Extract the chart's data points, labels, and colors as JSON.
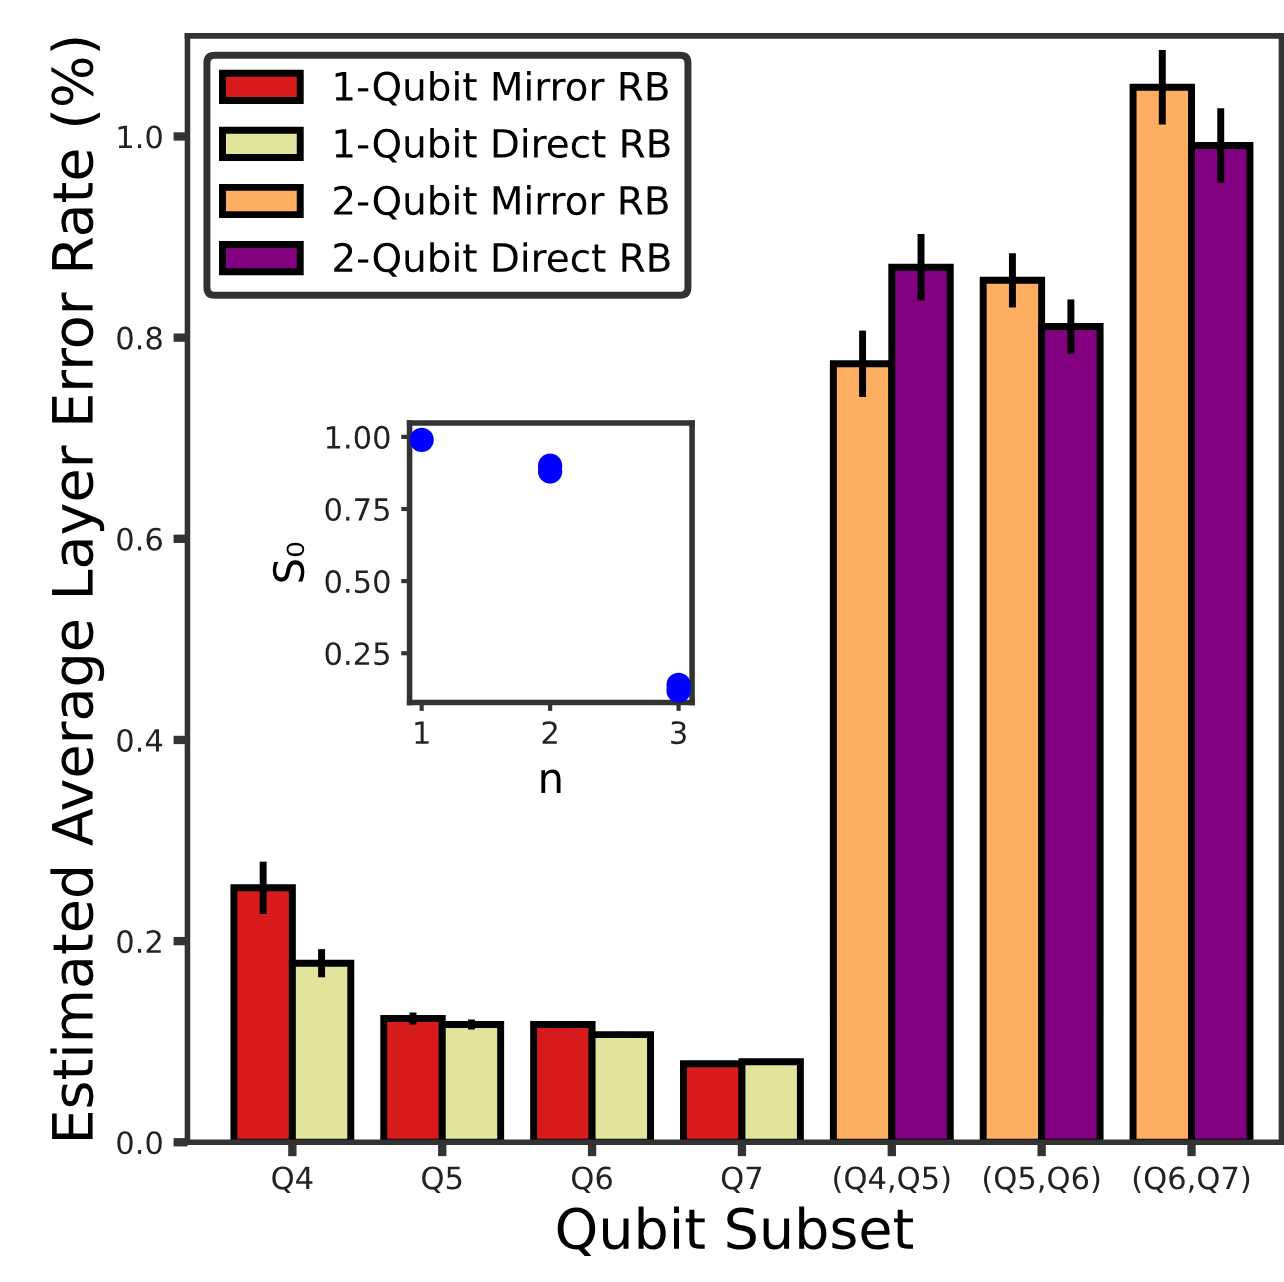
{
  "chart_data": [
    {
      "type": "bar",
      "xlabel": "Qubit Subset",
      "ylabel": "Estimated Average Layer Error Rate (%)",
      "categories": [
        "Q4",
        "Q5",
        "Q6",
        "Q7",
        "(Q4,Q5)",
        "(Q5,Q6)",
        "(Q6,Q7)"
      ],
      "series": [
        {
          "name": "1-Qubit Mirror RB",
          "color": "#d71a1c",
          "values": [
            0.253,
            0.123,
            0.117,
            0.078,
            null,
            null,
            null
          ],
          "errors": [
            0.026,
            0.006,
            0.002,
            null,
            null,
            null,
            null
          ]
        },
        {
          "name": "1-Qubit Direct RB",
          "color": "#e3e49b",
          "values": [
            0.178,
            0.117,
            0.107,
            0.08,
            null,
            null,
            null
          ],
          "errors": [
            0.014,
            0.005,
            0.003,
            null,
            null,
            null,
            null
          ]
        },
        {
          "name": "2-Qubit Mirror RB",
          "color": "#fdae61",
          "values": [
            null,
            null,
            null,
            null,
            0.774,
            0.857,
            1.049
          ],
          "errors": [
            null,
            null,
            null,
            null,
            0.033,
            0.027,
            0.037
          ]
        },
        {
          "name": "2-Qubit Direct RB",
          "color": "#800080",
          "values": [
            null,
            null,
            null,
            null,
            0.87,
            0.811,
            0.991
          ],
          "errors": [
            null,
            null,
            null,
            null,
            0.033,
            0.027,
            0.037
          ]
        }
      ],
      "ylim": [
        0,
        1.1
      ],
      "yticks": [
        {
          "value": 0,
          "label": "0.0"
        },
        {
          "value": 0.2,
          "label": "0.2"
        },
        {
          "value": 0.4,
          "label": "0.4"
        },
        {
          "value": 0.6,
          "label": "0.6"
        },
        {
          "value": 0.8,
          "label": "0.8"
        },
        {
          "value": 1.0,
          "label": "1.0"
        }
      ],
      "grid": false,
      "legend": "top left"
    },
    {
      "type": "scatter",
      "xlabel": "n",
      "ylabel": "S₀",
      "x": [
        1,
        2,
        2,
        3,
        3
      ],
      "series": [
        {
          "color": "#0000ff",
          "values": [
            0.99,
            0.9,
            0.88,
            0.14,
            0.12
          ]
        }
      ],
      "xlim": [
        0.906,
        3.105
      ],
      "xticks": [
        1,
        2,
        3
      ],
      "ylim": [
        0.079,
        1.048
      ],
      "yticks": [
        {
          "value": 0.25,
          "label": "0.25"
        },
        {
          "value": 0.5,
          "label": "0.50"
        },
        {
          "value": 0.75,
          "label": "0.75"
        },
        {
          "value": 1.0,
          "label": "1.00"
        }
      ],
      "grid": false,
      "legend": false,
      "marker": "circle"
    }
  ]
}
